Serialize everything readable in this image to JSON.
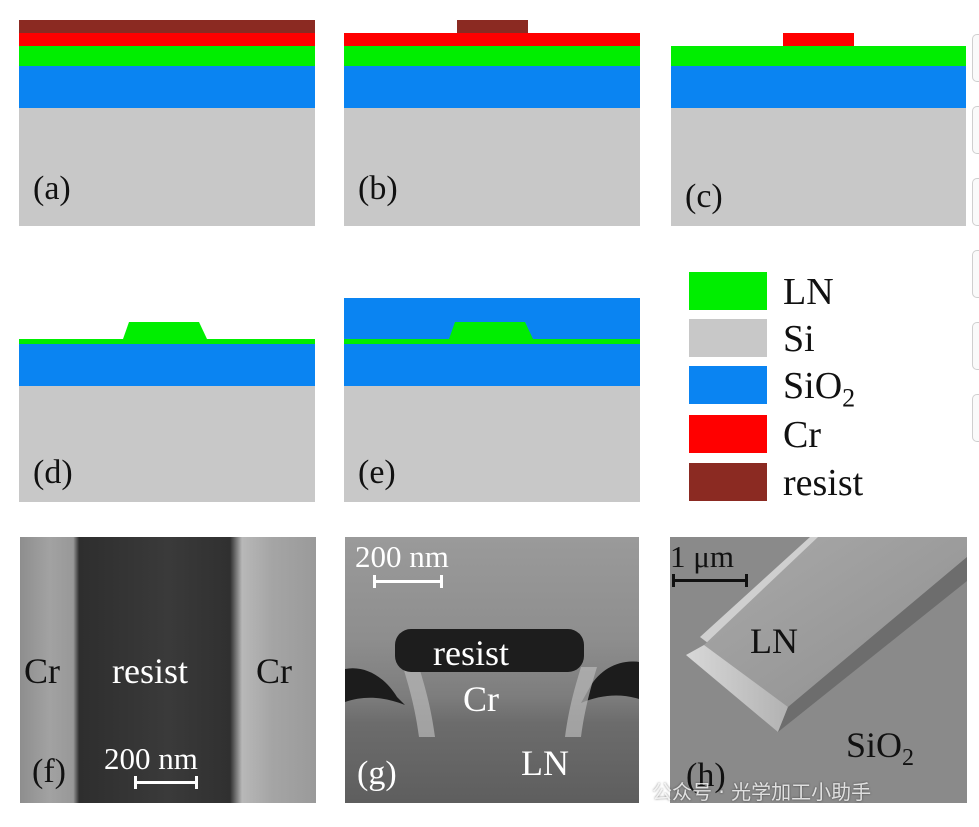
{
  "colors": {
    "LN": "#00ee00",
    "Si": "#c8c8c8",
    "SiO2": "#0a84f2",
    "Cr": "#ff0000",
    "resist": "#8b2a22"
  },
  "panels": {
    "a": "(a)",
    "b": "(b)",
    "c": "(c)",
    "d": "(d)",
    "e": "(e)",
    "f": "(f)",
    "g": "(g)",
    "h": "(h)"
  },
  "legend": [
    {
      "label": "LN",
      "color": "#00ee00"
    },
    {
      "label": "Si",
      "color": "#c8c8c8"
    },
    {
      "label": "SiO",
      "sub": "2",
      "color": "#0a84f2"
    },
    {
      "label": "Cr",
      "color": "#ff0000"
    },
    {
      "label": "resist",
      "color": "#8b2a22"
    }
  ],
  "sem_f": {
    "left": "Cr",
    "center": "resist",
    "right": "Cr",
    "scale": "200 nm"
  },
  "sem_g": {
    "scale": "200 nm",
    "resist": "resist",
    "cr": "Cr",
    "ln": "LN"
  },
  "sem_h": {
    "scale": "1 μm",
    "ln": "LN",
    "sio2": "SiO",
    "sio2_sub": "2"
  },
  "watermark": "公众号 · 光学加工小助手"
}
